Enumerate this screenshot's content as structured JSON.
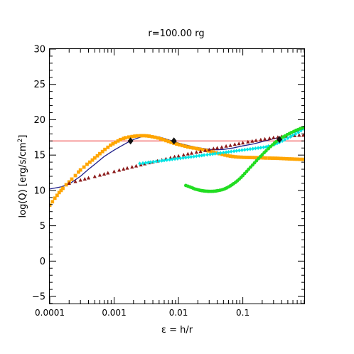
{
  "chart_data": {
    "type": "scatter",
    "title": "r=100.00 rg",
    "xlabel": "ε = h/r",
    "ylabel_main": "log(Q) [erg/s/cm",
    "ylabel_sup": "2",
    "ylabel_end": "]",
    "x_scale": "log",
    "xlim": [
      0.0001,
      0.9
    ],
    "ylim": [
      -6,
      30
    ],
    "x_ticks": [
      {
        "value": 0.0001,
        "label": "0.0001"
      },
      {
        "value": 0.001,
        "label": "0.001"
      },
      {
        "value": 0.01,
        "label": "0.01"
      },
      {
        "value": 0.1,
        "label": "0.1"
      }
    ],
    "y_ticks": [
      {
        "value": -5,
        "label": "−5"
      },
      {
        "value": 0,
        "label": "0"
      },
      {
        "value": 5,
        "label": "5"
      },
      {
        "value": 10,
        "label": "10"
      },
      {
        "value": 15,
        "label": "15"
      },
      {
        "value": 20,
        "label": "20"
      },
      {
        "value": 25,
        "label": "25"
      },
      {
        "value": 30,
        "label": "30"
      }
    ],
    "grid": false,
    "legend": "none",
    "series": [
      {
        "kind": "hline",
        "color": "#f06060",
        "y": 17.0
      },
      {
        "kind": "line",
        "color": "#20208a",
        "x": [
          0.0001,
          0.00015,
          0.0002,
          0.0003,
          0.0004,
          0.0005,
          0.0007,
          0.001,
          0.0013,
          0.0017,
          0.002,
          0.0025,
          0.003,
          0.0035,
          0.004,
          0.005,
          0.006,
          0.008,
          0.01,
          0.015,
          0.02,
          0.03,
          0.04,
          0.05,
          0.07,
          0.1,
          0.15,
          0.2,
          0.3,
          0.4,
          0.5,
          0.6,
          0.7,
          0.8,
          0.9
        ],
        "y": [
          10.2,
          10.5,
          10.9,
          12.0,
          13.0,
          13.7,
          14.8,
          15.7,
          16.3,
          16.9,
          17.2,
          17.5,
          17.7,
          17.75,
          17.7,
          17.55,
          17.35,
          17.0,
          16.7,
          16.3,
          16.05,
          15.8,
          15.75,
          15.8,
          16.0,
          16.3,
          16.6,
          16.9,
          17.3,
          17.6,
          17.9,
          18.15,
          18.35,
          18.55,
          18.7
        ]
      },
      {
        "kind": "markers",
        "shape": "square",
        "color": "#ffa500",
        "x": [
          0.0001,
          0.00011,
          0.00012,
          0.00013,
          0.00014,
          0.00015,
          0.00016,
          0.00018,
          0.0002,
          0.00022,
          0.00025,
          0.00028,
          0.0003,
          0.00034,
          0.00038,
          0.00042,
          0.00046,
          0.0005,
          0.00055,
          0.0006,
          0.00066,
          0.00072,
          0.0008,
          0.00088,
          0.00096,
          0.00105,
          0.00115,
          0.00125,
          0.0014,
          0.0015,
          0.0017,
          0.0019,
          0.0021,
          0.0023,
          0.0026,
          0.0029,
          0.0032,
          0.0035,
          0.0039,
          0.0043,
          0.0048,
          0.0053,
          0.0058,
          0.0064,
          0.007,
          0.0077,
          0.0085,
          0.0094,
          0.0104,
          0.0115,
          0.0127,
          0.014,
          0.0155,
          0.017,
          0.019,
          0.021,
          0.023,
          0.026,
          0.029,
          0.032,
          0.035,
          0.039,
          0.043,
          0.048,
          0.053,
          0.058,
          0.064,
          0.07,
          0.077,
          0.085,
          0.094,
          0.104,
          0.115,
          0.127,
          0.14,
          0.155,
          0.17,
          0.19,
          0.21,
          0.23,
          0.26,
          0.29,
          0.32,
          0.35,
          0.39,
          0.43,
          0.48,
          0.53,
          0.58,
          0.64,
          0.7,
          0.77,
          0.85
        ],
        "y": [
          7.9,
          8.4,
          8.9,
          9.3,
          9.7,
          10.0,
          10.3,
          10.8,
          11.2,
          11.6,
          12.1,
          12.6,
          12.9,
          13.3,
          13.7,
          14.0,
          14.3,
          14.6,
          14.9,
          15.2,
          15.5,
          15.8,
          16.1,
          16.4,
          16.6,
          16.8,
          17.0,
          17.2,
          17.35,
          17.45,
          17.55,
          17.62,
          17.68,
          17.72,
          17.74,
          17.74,
          17.72,
          17.68,
          17.6,
          17.52,
          17.42,
          17.3,
          17.18,
          17.05,
          16.93,
          16.8,
          16.68,
          16.56,
          16.45,
          16.35,
          16.25,
          16.15,
          16.07,
          16.0,
          15.93,
          15.85,
          15.78,
          15.7,
          15.6,
          15.5,
          15.4,
          15.3,
          15.2,
          15.1,
          15.0,
          14.92,
          14.85,
          14.8,
          14.75,
          14.72,
          14.7,
          14.68,
          14.67,
          14.66,
          14.65,
          14.64,
          14.63,
          14.62,
          14.6,
          14.58,
          14.57,
          14.56,
          14.55,
          14.54,
          14.52,
          14.5,
          14.48,
          14.46,
          14.45,
          14.43,
          14.42,
          14.4,
          14.4
        ]
      },
      {
        "kind": "markers",
        "shape": "triangle",
        "color": "#8b1a1a",
        "x": [
          0.0002,
          0.00025,
          0.0003,
          0.00035,
          0.0004,
          0.0005,
          0.0006,
          0.0007,
          0.0008,
          0.001,
          0.0012,
          0.0014,
          0.0016,
          0.0019,
          0.0022,
          0.0026,
          0.003,
          0.0035,
          0.004,
          0.0047,
          0.0055,
          0.0064,
          0.0075,
          0.0087,
          0.01,
          0.012,
          0.014,
          0.016,
          0.019,
          0.022,
          0.026,
          0.03,
          0.035,
          0.04,
          0.047,
          0.055,
          0.064,
          0.075,
          0.087,
          0.1,
          0.12,
          0.14,
          0.16,
          0.19,
          0.22,
          0.26,
          0.3,
          0.35,
          0.4,
          0.47,
          0.55,
          0.64,
          0.75,
          0.87
        ],
        "y": [
          11.0,
          11.25,
          11.45,
          11.6,
          11.75,
          11.95,
          12.15,
          12.3,
          12.45,
          12.65,
          12.85,
          13.0,
          13.15,
          13.3,
          13.45,
          13.6,
          13.75,
          13.9,
          14.0,
          14.15,
          14.3,
          14.45,
          14.6,
          14.75,
          14.85,
          15.0,
          15.15,
          15.25,
          15.4,
          15.5,
          15.65,
          15.75,
          15.9,
          16.0,
          16.1,
          16.25,
          16.35,
          16.5,
          16.6,
          16.7,
          16.85,
          16.95,
          17.05,
          17.15,
          17.25,
          17.35,
          17.45,
          17.5,
          17.6,
          17.65,
          17.7,
          17.75,
          17.8,
          17.8
        ]
      },
      {
        "kind": "markers",
        "shape": "diamond",
        "color": "#00e5e5",
        "x": [
          0.0025,
          0.0028,
          0.0031,
          0.0034,
          0.0037,
          0.0041,
          0.0045,
          0.005,
          0.0055,
          0.006,
          0.0066,
          0.0073,
          0.008,
          0.0088,
          0.0097,
          0.0107,
          0.0118,
          0.013,
          0.0143,
          0.0157,
          0.0173,
          0.019,
          0.021,
          0.023,
          0.025,
          0.028,
          0.031,
          0.034,
          0.037,
          0.041,
          0.045,
          0.05,
          0.055,
          0.06,
          0.066,
          0.073,
          0.08,
          0.088,
          0.097,
          0.107,
          0.118,
          0.13,
          0.143,
          0.157,
          0.173,
          0.19,
          0.21,
          0.23,
          0.25,
          0.28,
          0.31,
          0.34,
          0.37,
          0.41,
          0.45,
          0.5,
          0.55,
          0.6,
          0.66,
          0.73,
          0.8,
          0.87
        ],
        "y": [
          13.8,
          13.85,
          13.9,
          13.95,
          14.0,
          14.05,
          14.1,
          14.15,
          14.2,
          14.25,
          14.3,
          14.35,
          14.4,
          14.45,
          14.5,
          14.55,
          14.6,
          14.65,
          14.7,
          14.75,
          14.8,
          14.85,
          14.9,
          14.95,
          15.0,
          15.05,
          15.1,
          15.15,
          15.2,
          15.25,
          15.3,
          15.35,
          15.4,
          15.45,
          15.5,
          15.55,
          15.6,
          15.65,
          15.7,
          15.75,
          15.8,
          15.85,
          15.9,
          15.95,
          16.0,
          16.05,
          16.1,
          16.15,
          16.25,
          16.35,
          16.5,
          16.65,
          16.8,
          17.0,
          17.2,
          17.4,
          17.6,
          17.8,
          18.0,
          18.2,
          18.45,
          18.7
        ]
      },
      {
        "kind": "markers",
        "shape": "circle",
        "color": "#22dd22",
        "x": [
          0.013,
          0.014,
          0.015,
          0.016,
          0.017,
          0.018,
          0.019,
          0.02,
          0.021,
          0.022,
          0.023,
          0.024,
          0.025,
          0.0265,
          0.028,
          0.0295,
          0.031,
          0.033,
          0.035,
          0.037,
          0.039,
          0.041,
          0.044,
          0.047,
          0.05,
          0.053,
          0.056,
          0.06,
          0.064,
          0.068,
          0.072,
          0.077,
          0.082,
          0.088,
          0.094,
          0.1,
          0.107,
          0.115,
          0.123,
          0.132,
          0.142,
          0.152,
          0.163,
          0.175,
          0.188,
          0.2,
          0.215,
          0.23,
          0.25,
          0.27,
          0.29,
          0.31,
          0.33,
          0.36,
          0.39,
          0.42,
          0.45,
          0.49,
          0.53,
          0.57,
          0.62,
          0.67,
          0.72,
          0.78,
          0.84,
          0.88
        ],
        "y": [
          10.7,
          10.6,
          10.5,
          10.4,
          10.3,
          10.2,
          10.15,
          10.1,
          10.05,
          10.0,
          9.97,
          9.95,
          9.92,
          9.9,
          9.88,
          9.87,
          9.87,
          9.87,
          9.88,
          9.9,
          9.93,
          9.97,
          10.02,
          10.08,
          10.16,
          10.25,
          10.35,
          10.5,
          10.65,
          10.8,
          10.97,
          11.15,
          11.35,
          11.6,
          11.85,
          12.1,
          12.4,
          12.7,
          13.0,
          13.3,
          13.6,
          13.9,
          14.2,
          14.5,
          14.8,
          15.05,
          15.35,
          15.6,
          15.9,
          16.2,
          16.45,
          16.7,
          16.9,
          17.15,
          17.35,
          17.55,
          17.7,
          17.9,
          18.05,
          18.2,
          18.35,
          18.5,
          18.6,
          18.75,
          18.85,
          18.9
        ]
      },
      {
        "kind": "markers",
        "shape": "big-diamond",
        "color": "#111111",
        "x": [
          0.0018,
          0.0085,
          0.37
        ],
        "y": [
          17.0,
          17.0,
          17.2
        ]
      }
    ]
  }
}
